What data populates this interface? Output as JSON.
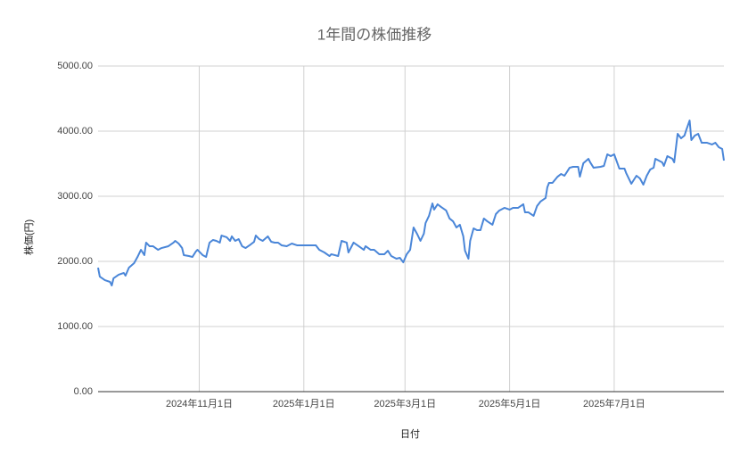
{
  "chart_data": {
    "type": "line",
    "title": "1年間の株価推移",
    "x_label": "日付",
    "y_label": "株価(円)",
    "color": "#4a86d8",
    "grid": true,
    "xlim": [
      "2024-09-03",
      "2025-09-03"
    ],
    "xticks": [
      {
        "value": "2024-11-01",
        "label": "2024年11月1日"
      },
      {
        "value": "2025-01-01",
        "label": "2025年1月1日"
      },
      {
        "value": "2025-03-01",
        "label": "2025年3月1日"
      },
      {
        "value": "2025-05-01",
        "label": "2025年5月1日"
      },
      {
        "value": "2025-07-01",
        "label": "2025年7月1日"
      }
    ],
    "ylim": [
      0,
      5000
    ],
    "yticks": [
      {
        "value": 0,
        "label": "0.00"
      },
      {
        "value": 1000,
        "label": "1000.00"
      },
      {
        "value": 2000,
        "label": "2000.00"
      },
      {
        "value": 3000,
        "label": "3000.00"
      },
      {
        "value": 4000,
        "label": "4000.00"
      },
      {
        "value": 5000,
        "label": "5000.00"
      }
    ],
    "x": [
      "2024-09-03",
      "2024-09-04",
      "2024-09-07",
      "2024-09-10",
      "2024-09-11",
      "2024-09-12",
      "2024-09-15",
      "2024-09-18",
      "2024-09-19",
      "2024-09-21",
      "2024-09-24",
      "2024-09-26",
      "2024-09-28",
      "2024-09-29",
      "2024-09-30",
      "2024-10-01",
      "2024-10-03",
      "2024-10-05",
      "2024-10-08",
      "2024-10-10",
      "2024-10-14",
      "2024-10-17",
      "2024-10-18",
      "2024-10-20",
      "2024-10-22",
      "2024-10-23",
      "2024-10-26",
      "2024-10-28",
      "2024-10-30",
      "2024-10-31",
      "2024-11-03",
      "2024-11-05",
      "2024-11-07",
      "2024-11-09",
      "2024-11-11",
      "2024-11-13",
      "2024-11-14",
      "2024-11-17",
      "2024-11-19",
      "2024-11-20",
      "2024-11-22",
      "2024-11-24",
      "2024-11-26",
      "2024-11-28",
      "2024-12-01",
      "2024-12-03",
      "2024-12-04",
      "2024-12-06",
      "2024-12-08",
      "2024-12-11",
      "2024-12-13",
      "2024-12-15",
      "2024-12-17",
      "2024-12-19",
      "2024-12-22",
      "2024-12-25",
      "2024-12-28",
      "2025-01-01",
      "2025-01-05",
      "2025-01-08",
      "2025-01-10",
      "2025-01-13",
      "2025-01-16",
      "2025-01-17",
      "2025-01-21",
      "2025-01-23",
      "2025-01-26",
      "2025-01-27",
      "2025-01-30",
      "2025-02-02",
      "2025-02-05",
      "2025-02-06",
      "2025-02-09",
      "2025-02-11",
      "2025-02-14",
      "2025-02-17",
      "2025-02-19",
      "2025-02-21",
      "2025-02-24",
      "2025-02-26",
      "2025-02-28",
      "2025-03-02",
      "2025-03-04",
      "2025-03-06",
      "2025-03-08",
      "2025-03-10",
      "2025-03-12",
      "2025-03-13",
      "2025-03-15",
      "2025-03-17",
      "2025-03-18",
      "2025-03-20",
      "2025-03-22",
      "2025-03-25",
      "2025-03-27",
      "2025-03-29",
      "2025-03-31",
      "2025-04-02",
      "2025-04-04",
      "2025-04-05",
      "2025-04-07",
      "2025-04-08",
      "2025-04-10",
      "2025-04-12",
      "2025-04-14",
      "2025-04-16",
      "2025-04-18",
      "2025-04-21",
      "2025-04-23",
      "2025-04-25",
      "2025-04-28",
      "2025-05-01",
      "2025-05-03",
      "2025-05-06",
      "2025-05-09",
      "2025-05-10",
      "2025-05-12",
      "2025-05-15",
      "2025-05-17",
      "2025-05-19",
      "2025-05-22",
      "2025-05-23",
      "2025-05-24",
      "2025-05-26",
      "2025-05-29",
      "2025-05-31",
      "2025-06-02",
      "2025-06-05",
      "2025-06-07",
      "2025-06-10",
      "2025-06-11",
      "2025-06-13",
      "2025-06-16",
      "2025-06-17",
      "2025-06-19",
      "2025-06-23",
      "2025-06-25",
      "2025-06-27",
      "2025-06-29",
      "2025-07-01",
      "2025-07-04",
      "2025-07-07",
      "2025-07-08",
      "2025-07-11",
      "2025-07-14",
      "2025-07-16",
      "2025-07-18",
      "2025-07-20",
      "2025-07-22",
      "2025-07-24",
      "2025-07-25",
      "2025-07-29",
      "2025-07-30",
      "2025-08-01",
      "2025-08-04",
      "2025-08-05",
      "2025-08-07",
      "2025-08-09",
      "2025-08-11",
      "2025-08-12",
      "2025-08-14",
      "2025-08-15",
      "2025-08-17",
      "2025-08-19",
      "2025-08-21",
      "2025-08-24",
      "2025-08-27",
      "2025-08-29",
      "2025-08-31",
      "2025-09-02",
      "2025-09-03"
    ],
    "values": [
      1904,
      1767,
      1712,
      1685,
      1630,
      1740,
      1795,
      1822,
      1781,
      1904,
      1973,
      2068,
      2178,
      2137,
      2096,
      2288,
      2233,
      2233,
      2178,
      2205,
      2233,
      2288,
      2315,
      2274,
      2205,
      2096,
      2082,
      2068,
      2151,
      2178,
      2096,
      2068,
      2288,
      2329,
      2315,
      2288,
      2397,
      2370,
      2315,
      2384,
      2315,
      2342,
      2233,
      2205,
      2260,
      2301,
      2397,
      2342,
      2315,
      2384,
      2301,
      2288,
      2288,
      2247,
      2233,
      2274,
      2247,
      2247,
      2247,
      2247,
      2178,
      2137,
      2082,
      2110,
      2082,
      2315,
      2288,
      2137,
      2288,
      2233,
      2178,
      2233,
      2178,
      2178,
      2110,
      2110,
      2164,
      2082,
      2041,
      2055,
      1986,
      2110,
      2178,
      2521,
      2425,
      2315,
      2425,
      2589,
      2699,
      2890,
      2795,
      2877,
      2836,
      2781,
      2658,
      2616,
      2521,
      2562,
      2384,
      2164,
      2041,
      2315,
      2507,
      2479,
      2479,
      2658,
      2616,
      2562,
      2726,
      2781,
      2822,
      2795,
      2822,
      2822,
      2877,
      2753,
      2753,
      2699,
      2849,
      2918,
      2973,
      3137,
      3205,
      3205,
      3301,
      3342,
      3315,
      3438,
      3452,
      3452,
      3301,
      3507,
      3575,
      3521,
      3438,
      3452,
      3466,
      3644,
      3616,
      3644,
      3425,
      3425,
      3356,
      3192,
      3315,
      3274,
      3178,
      3315,
      3411,
      3438,
      3575,
      3521,
      3466,
      3616,
      3575,
      3521,
      3959,
      3890,
      3932,
      4014,
      4164,
      3863,
      3932,
      3959,
      3822,
      3822,
      3795,
      3822,
      3753,
      3726,
      3548
    ]
  }
}
